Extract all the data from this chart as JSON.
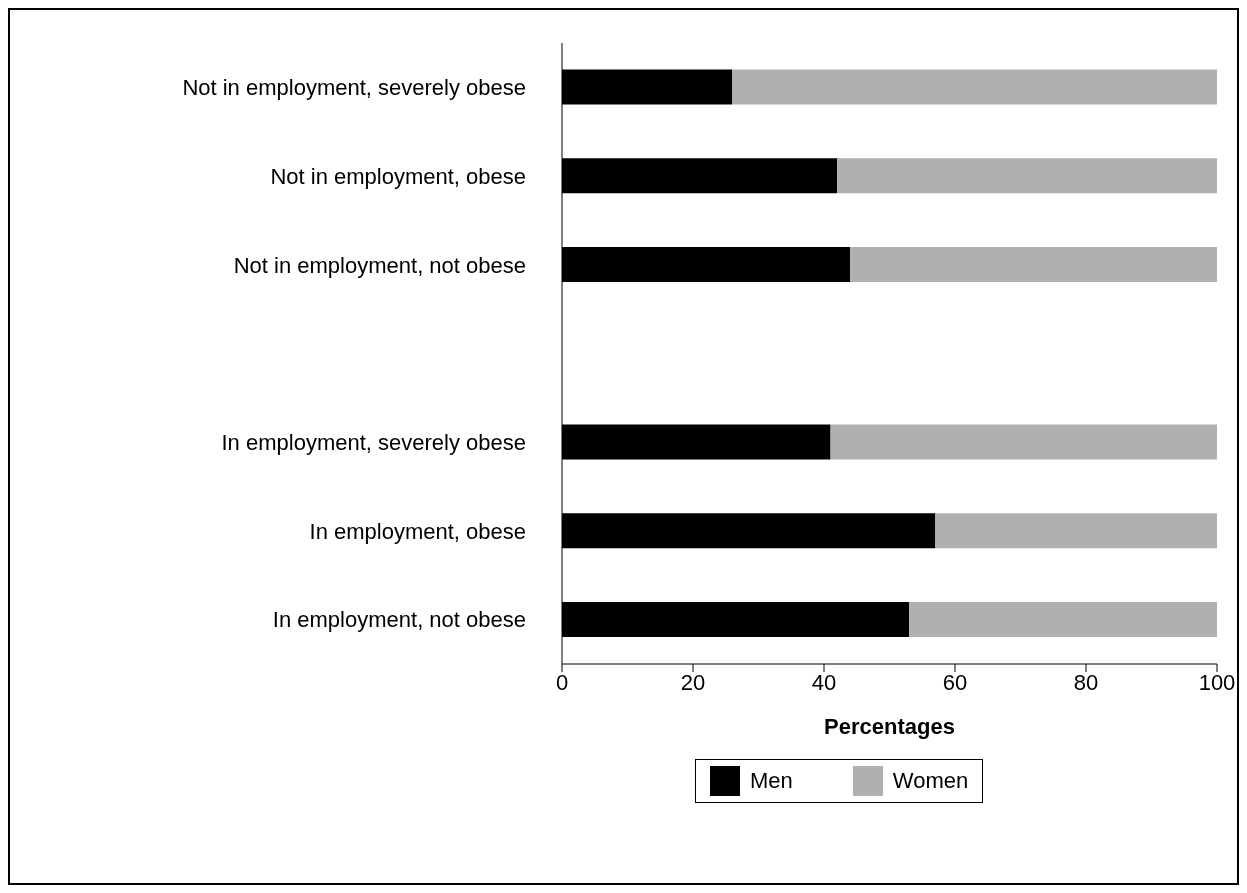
{
  "chart_data": {
    "type": "bar",
    "orientation": "horizontal",
    "stacked": true,
    "categories": [
      "Not in employment, severely obese",
      "Not in employment, obese",
      "Not in employment, not obese",
      null,
      "In employment, severely obese",
      "In employment, obese",
      "In employment, not obese"
    ],
    "series": [
      {
        "name": "Men",
        "color": "#000000",
        "values": [
          26,
          42,
          44,
          null,
          41,
          57,
          53
        ]
      },
      {
        "name": "Women",
        "color": "#b0b0b1",
        "values": [
          74,
          58,
          56,
          null,
          59,
          43,
          47
        ]
      }
    ],
    "xlabel": "Percentages",
    "xlim": [
      0,
      100
    ],
    "xticks": [
      0,
      20,
      40,
      60,
      80,
      100
    ],
    "legend": "bottom"
  }
}
